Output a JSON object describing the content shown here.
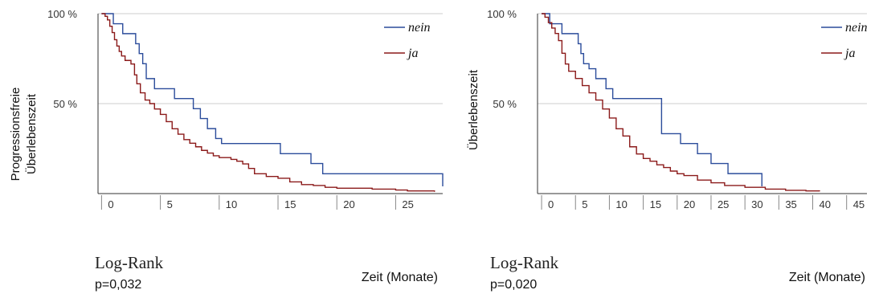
{
  "chart_data": [
    {
      "type": "line",
      "step": true,
      "ylabel": [
        "Progressionsfreie",
        "Überlebenszeit"
      ],
      "xlabel": "Zeit (Monate)",
      "ytick_labels": [
        "100 %",
        "50 %"
      ],
      "xticks": [
        0,
        5,
        10,
        15,
        20,
        25
      ],
      "xlim": [
        -0.3,
        29
      ],
      "ylim": [
        0,
        1
      ],
      "grid": "horizontal",
      "legend_position": "top-right",
      "test_label": "Log-Rank",
      "p_value": "p=0,032",
      "series": [
        {
          "name": "nein",
          "color": "#2b4c9b",
          "points": [
            [
              0,
              1
            ],
            [
              1,
              1
            ],
            [
              1,
              0.944
            ],
            [
              1.8,
              0.944
            ],
            [
              1.8,
              0.889
            ],
            [
              2.9,
              0.889
            ],
            [
              2.9,
              0.833
            ],
            [
              3.2,
              0.833
            ],
            [
              3.2,
              0.778
            ],
            [
              3.5,
              0.778
            ],
            [
              3.5,
              0.722
            ],
            [
              3.8,
              0.722
            ],
            [
              3.8,
              0.639
            ],
            [
              4.5,
              0.639
            ],
            [
              4.5,
              0.583
            ],
            [
              6.2,
              0.583
            ],
            [
              6.2,
              0.528
            ],
            [
              7.8,
              0.528
            ],
            [
              7.8,
              0.472
            ],
            [
              8.4,
              0.472
            ],
            [
              8.4,
              0.417
            ],
            [
              9.0,
              0.417
            ],
            [
              9.0,
              0.361
            ],
            [
              9.7,
              0.361
            ],
            [
              9.7,
              0.306
            ],
            [
              10.2,
              0.306
            ],
            [
              10.2,
              0.278
            ],
            [
              15.2,
              0.278
            ],
            [
              15.2,
              0.222
            ],
            [
              17.8,
              0.222
            ],
            [
              17.8,
              0.167
            ],
            [
              18.8,
              0.167
            ],
            [
              18.8,
              0.11
            ],
            [
              29,
              0.11
            ],
            [
              29,
              0.04
            ]
          ]
        },
        {
          "name": "ja",
          "color": "#8b1a1a",
          "points": [
            [
              0,
              1
            ],
            [
              0.3,
              0.985
            ],
            [
              0.5,
              0.965
            ],
            [
              0.7,
              0.93
            ],
            [
              0.9,
              0.895
            ],
            [
              1.1,
              0.855
            ],
            [
              1.3,
              0.82
            ],
            [
              1.5,
              0.79
            ],
            [
              1.7,
              0.765
            ],
            [
              2.0,
              0.74
            ],
            [
              2.5,
              0.72
            ],
            [
              2.8,
              0.66
            ],
            [
              3.0,
              0.61
            ],
            [
              3.3,
              0.56
            ],
            [
              3.7,
              0.52
            ],
            [
              4.1,
              0.5
            ],
            [
              4.5,
              0.47
            ],
            [
              5.0,
              0.44
            ],
            [
              5.5,
              0.4
            ],
            [
              6.0,
              0.36
            ],
            [
              6.5,
              0.33
            ],
            [
              7.0,
              0.3
            ],
            [
              7.5,
              0.28
            ],
            [
              8.0,
              0.26
            ],
            [
              8.5,
              0.24
            ],
            [
              9.0,
              0.225
            ],
            [
              9.5,
              0.21
            ],
            [
              10.0,
              0.2
            ],
            [
              11.0,
              0.19
            ],
            [
              11.5,
              0.18
            ],
            [
              12.0,
              0.165
            ],
            [
              12.5,
              0.14
            ],
            [
              13.0,
              0.11
            ],
            [
              14.0,
              0.095
            ],
            [
              15.0,
              0.085
            ],
            [
              16.0,
              0.065
            ],
            [
              17.0,
              0.05
            ],
            [
              18.0,
              0.045
            ],
            [
              19.0,
              0.035
            ],
            [
              20.0,
              0.03
            ],
            [
              23.0,
              0.025
            ],
            [
              25.0,
              0.02
            ],
            [
              26.0,
              0.015
            ],
            [
              28.3,
              0.015
            ],
            [
              28.3,
              0.01
            ]
          ]
        }
      ]
    },
    {
      "type": "line",
      "step": true,
      "ylabel": [
        "Überlebenszeit"
      ],
      "xlabel": "Zeit (Monate)",
      "ytick_labels": [
        "100 %",
        "50 %"
      ],
      "xticks": [
        0,
        5,
        10,
        15,
        20,
        25,
        30,
        35,
        40,
        45
      ],
      "xlim": [
        -0.6,
        48
      ],
      "ylim": [
        0,
        1
      ],
      "grid": "horizontal",
      "legend_position": "top-right",
      "test_label": "Log-Rank",
      "p_value": "p=0,020",
      "series": [
        {
          "name": "nein",
          "color": "#2b4c9b",
          "points": [
            [
              0,
              1
            ],
            [
              1.2,
              1
            ],
            [
              1.2,
              0.944
            ],
            [
              3,
              0.944
            ],
            [
              3,
              0.889
            ],
            [
              5.4,
              0.889
            ],
            [
              5.4,
              0.833
            ],
            [
              5.8,
              0.833
            ],
            [
              5.8,
              0.778
            ],
            [
              6.2,
              0.778
            ],
            [
              6.2,
              0.722
            ],
            [
              7,
              0.722
            ],
            [
              7,
              0.694
            ],
            [
              8,
              0.694
            ],
            [
              8,
              0.639
            ],
            [
              9.5,
              0.639
            ],
            [
              9.5,
              0.583
            ],
            [
              10.5,
              0.583
            ],
            [
              10.5,
              0.528
            ],
            [
              17.7,
              0.528
            ],
            [
              17.7,
              0.333
            ],
            [
              20.5,
              0.333
            ],
            [
              20.5,
              0.278
            ],
            [
              23,
              0.278
            ],
            [
              23,
              0.222
            ],
            [
              25,
              0.222
            ],
            [
              25,
              0.167
            ],
            [
              27.5,
              0.167
            ],
            [
              27.5,
              0.111
            ],
            [
              32.5,
              0.111
            ],
            [
              32.5,
              0.04
            ]
          ]
        },
        {
          "name": "ja",
          "color": "#8b1a1a",
          "points": [
            [
              0,
              1
            ],
            [
              0.5,
              0.98
            ],
            [
              1.0,
              0.95
            ],
            [
              1.5,
              0.92
            ],
            [
              2.0,
              0.89
            ],
            [
              2.5,
              0.85
            ],
            [
              3.0,
              0.78
            ],
            [
              3.5,
              0.72
            ],
            [
              4.0,
              0.68
            ],
            [
              5.0,
              0.64
            ],
            [
              6.0,
              0.6
            ],
            [
              7.0,
              0.56
            ],
            [
              8.0,
              0.52
            ],
            [
              9.0,
              0.47
            ],
            [
              10.0,
              0.42
            ],
            [
              11.0,
              0.36
            ],
            [
              12.0,
              0.32
            ],
            [
              13.0,
              0.26
            ],
            [
              14.0,
              0.22
            ],
            [
              15.0,
              0.195
            ],
            [
              16.0,
              0.18
            ],
            [
              17.0,
              0.16
            ],
            [
              18.0,
              0.145
            ],
            [
              19.0,
              0.125
            ],
            [
              20.0,
              0.11
            ],
            [
              21.0,
              0.1
            ],
            [
              23.0,
              0.075
            ],
            [
              25.0,
              0.06
            ],
            [
              27.0,
              0.045
            ],
            [
              30.0,
              0.035
            ],
            [
              33.0,
              0.025
            ],
            [
              36.0,
              0.018
            ],
            [
              39.0,
              0.015
            ],
            [
              41.0,
              0.012
            ]
          ]
        }
      ]
    }
  ]
}
